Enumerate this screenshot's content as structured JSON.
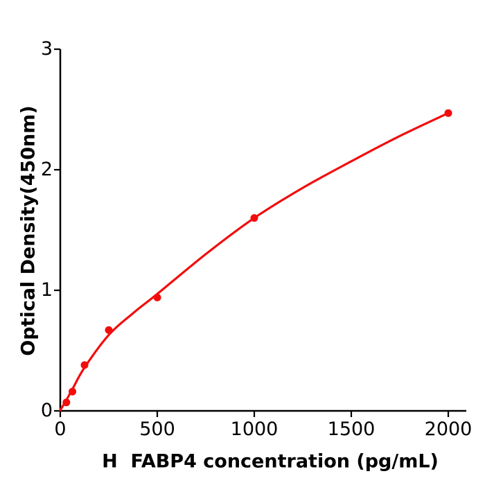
{
  "figure": {
    "background": "#ffffff",
    "axis_color": "#000000",
    "text_color": "#000000"
  },
  "chart_data": {
    "type": "scatter",
    "title": "",
    "xlabel": "H  FABP4 concentration (pg/mL)",
    "ylabel": "Optical Density(450nm)",
    "xlim": [
      0,
      2095
    ],
    "ylim": [
      0,
      3
    ],
    "x_ticks": [
      0,
      500,
      1000,
      1500,
      2000
    ],
    "y_ticks": [
      0,
      1,
      2,
      3
    ],
    "grid": false,
    "legend_position": "none",
    "accent_color": "#f20d0d",
    "series": [
      {
        "name": "standard-points",
        "type": "scatter",
        "color": "#f20d0d",
        "marker": "circle",
        "x": [
          31.25,
          62.5,
          125,
          250,
          500,
          1000,
          2000
        ],
        "y": [
          0.07,
          0.16,
          0.38,
          0.67,
          0.94,
          1.6,
          2.47
        ]
      },
      {
        "name": "fit-curve",
        "type": "line",
        "color": "#f20d0d",
        "x": [
          0,
          31.25,
          62.5,
          125,
          250,
          375,
          500,
          750,
          1000,
          1250,
          1500,
          1750,
          2000
        ],
        "y": [
          0.005,
          0.09,
          0.18,
          0.36,
          0.63,
          0.81,
          0.97,
          1.3,
          1.6,
          1.85,
          2.07,
          2.28,
          2.47
        ]
      }
    ]
  }
}
